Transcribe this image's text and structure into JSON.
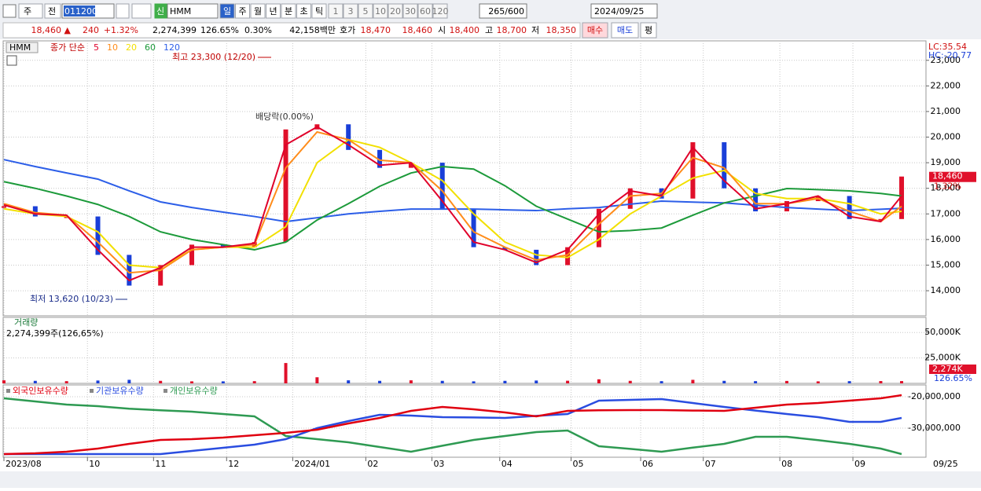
{
  "toolbar": {
    "items": [
      "주",
      "전"
    ],
    "code": "011200",
    "badge": "신",
    "name": "HMM",
    "periods": [
      "일",
      "주",
      "월",
      "년",
      "분",
      "초",
      "틱"
    ],
    "intervals": [
      "1",
      "3",
      "5",
      "10",
      "20",
      "30",
      "60",
      "120"
    ],
    "count": "265/600",
    "date": "2024/09/25"
  },
  "quote": {
    "fields": [
      "18,460 ▲",
      "240",
      "+1.32%",
      "2,274,399",
      "126.65%",
      "0.30%",
      "42,158백만",
      "호가",
      "18,470",
      "18,460",
      "시",
      "18,400",
      "고",
      "18,700",
      "저",
      "18,350"
    ],
    "buttons": [
      "매수",
      "매도",
      "평"
    ]
  },
  "chart_data": [
    {
      "type": "candlestick",
      "title": "HMM",
      "label": "종가 단순",
      "x": [
        0,
        9,
        18,
        27,
        36,
        45,
        54,
        63,
        72,
        81,
        90,
        99,
        108,
        117,
        126,
        135,
        144,
        153,
        162,
        171,
        180,
        189,
        198,
        207,
        216,
        225,
        234,
        243,
        252,
        258
      ],
      "xlim": [
        0,
        265
      ],
      "values": [
        17300,
        16900,
        16900,
        15400,
        14200,
        15000,
        15800,
        15700,
        15900,
        20300,
        20500,
        19500,
        18800,
        19000,
        17200,
        15700,
        15600,
        15000,
        15700,
        17200,
        18000,
        17600,
        19800,
        18000,
        17100,
        17500,
        17700,
        16800,
        16800,
        18460
      ],
      "series": [
        {
          "name": "5",
          "color": "#e0002a",
          "values": [
            17350,
            17000,
            16950,
            15600,
            14400,
            14900,
            15700,
            15700,
            15850,
            19700,
            20400,
            19700,
            18900,
            19000,
            17500,
            15900,
            15600,
            15100,
            15600,
            17000,
            17900,
            17700,
            19600,
            18300,
            17200,
            17400,
            17700,
            16900,
            16700,
            17700
          ]
        },
        {
          "name": "10",
          "color": "#ff8c1a",
          "values": [
            17400,
            17050,
            16950,
            15900,
            14700,
            14800,
            15600,
            15700,
            15800,
            18800,
            20200,
            19900,
            19100,
            19000,
            17900,
            16300,
            15700,
            15200,
            15400,
            16600,
            17700,
            17800,
            19200,
            18800,
            17400,
            17400,
            17600,
            17100,
            16700,
            17300
          ]
        },
        {
          "name": "20",
          "color": "#f2e000",
          "values": [
            17200,
            17000,
            16900,
            16300,
            15000,
            14900,
            15600,
            15700,
            15700,
            16500,
            19000,
            19900,
            19600,
            19000,
            18300,
            17000,
            15900,
            15400,
            15300,
            16000,
            17000,
            17700,
            18400,
            18700,
            17800,
            17600,
            17600,
            17400,
            17000,
            17100
          ]
        },
        {
          "name": "60",
          "color": "#1c9a3a",
          "values": [
            18260,
            18000,
            17700,
            17370,
            16900,
            16300,
            16000,
            15800,
            15600,
            15900,
            16760,
            17400,
            18080,
            18600,
            18850,
            18750,
            18100,
            17300,
            16800,
            16300,
            16350,
            16450,
            16950,
            17430,
            17700,
            17990,
            17950,
            17900,
            17800,
            17700
          ]
        },
        {
          "name": "120",
          "color": "#2c5ee8",
          "values": [
            19120,
            18850,
            18600,
            18360,
            17900,
            17470,
            17250,
            17070,
            16900,
            16700,
            16850,
            17000,
            17100,
            17190,
            17190,
            17190,
            17160,
            17130,
            17200,
            17250,
            17380,
            17500,
            17460,
            17430,
            17340,
            17250,
            17190,
            17130,
            17180,
            17220
          ]
        }
      ],
      "up_color": "#e0102a",
      "down_color": "#1a3fd8",
      "ylim": [
        13020,
        23760
      ],
      "yticks": [
        {
          "value": 14000,
          "label": "14,000"
        },
        {
          "value": 15000,
          "label": "15,000"
        },
        {
          "value": 16000,
          "label": "16,000"
        },
        {
          "value": 17000,
          "label": "17,000"
        },
        {
          "value": 18000,
          "label": "18,000"
        },
        {
          "value": 19000,
          "label": "19,000"
        },
        {
          "value": 20000,
          "label": "20,000"
        },
        {
          "value": 21000,
          "label": "21,000"
        },
        {
          "value": 22000,
          "label": "22,000"
        },
        {
          "value": 23000,
          "label": "23,000"
        }
      ],
      "annotations": [
        "최고 23,300 (12/20)",
        "최저 13,620 (10/23)",
        "배당락(0.00%)"
      ],
      "corner_labels": [
        "LC:35.54",
        "HC:-20.77"
      ],
      "current_labels": [
        "18,460",
        "1.32%"
      ],
      "grid": true
    },
    {
      "type": "bar",
      "title": "거래량",
      "subtitle": "2,274,399주(126,65%)",
      "x": [
        0,
        9,
        18,
        27,
        36,
        45,
        54,
        63,
        72,
        81,
        90,
        99,
        108,
        117,
        126,
        135,
        144,
        153,
        162,
        171,
        180,
        189,
        198,
        207,
        216,
        225,
        234,
        243,
        252,
        258
      ],
      "xlim": [
        0,
        265
      ],
      "values": [
        3000,
        2500,
        2200,
        2800,
        3500,
        2500,
        2000,
        2000,
        2200,
        20000,
        6000,
        3000,
        2500,
        3000,
        2500,
        2000,
        2500,
        2800,
        2600,
        4000,
        2500,
        2200,
        3500,
        2500,
        2200,
        2400,
        2000,
        2200,
        2300,
        2274
      ],
      "ylim": [
        0,
        64840
      ],
      "yticks": [
        {
          "value": 25000,
          "label": "25,000K"
        },
        {
          "value": 50000,
          "label": "50,000K"
        }
      ],
      "current_labels": [
        "2,274K",
        "126.65%"
      ],
      "grid": true
    },
    {
      "type": "line",
      "x": [
        0,
        9,
        18,
        27,
        36,
        45,
        54,
        63,
        72,
        81,
        90,
        99,
        108,
        117,
        126,
        135,
        144,
        153,
        162,
        171,
        180,
        189,
        198,
        207,
        216,
        225,
        234,
        243,
        252,
        258
      ],
      "xlim": [
        0,
        265
      ],
      "xticks": [
        {
          "value": 0,
          "label": "2023/08"
        },
        {
          "value": 24,
          "label": "10"
        },
        {
          "value": 43,
          "label": "11"
        },
        {
          "value": 64,
          "label": "12"
        },
        {
          "value": 83,
          "label": "2024/01"
        },
        {
          "value": 104,
          "label": "02"
        },
        {
          "value": 123,
          "label": "03"
        },
        {
          "value": 142.5,
          "label": "04"
        },
        {
          "value": 163,
          "label": "05"
        },
        {
          "value": 183,
          "label": "06"
        },
        {
          "value": 201,
          "label": "07"
        },
        {
          "value": 223,
          "label": "08"
        },
        {
          "value": 244,
          "label": "09"
        }
      ],
      "x_end_label": "09/25",
      "series": [
        {
          "name": "외국인보유수량",
          "color": "#e00010",
          "values": [
            -38250000,
            -38000000,
            -37500000,
            -36500000,
            -35000000,
            -33750000,
            -33500000,
            -33000000,
            -32250000,
            -31500000,
            -30500000,
            -28500000,
            -26750000,
            -24500000,
            -23250000,
            -24000000,
            -25000000,
            -26250000,
            -24500000,
            -24300000,
            -24250000,
            -24250000,
            -24400000,
            -24500000,
            -23500000,
            -22500000,
            -22000000,
            -21250000,
            -20500000,
            -19500000
          ]
        },
        {
          "name": "기관보유수량",
          "color": "#2a4de0",
          "values": [
            -38250000,
            -38250000,
            -38250000,
            -38250000,
            -38250000,
            -38250000,
            -37250000,
            -36250000,
            -35250000,
            -33500000,
            -30000000,
            -27750000,
            -25750000,
            -26000000,
            -26500000,
            -26600000,
            -26750000,
            -26100000,
            -25500000,
            -21250000,
            -21000000,
            -20750000,
            -22000000,
            -23250000,
            -24400000,
            -25500000,
            -26500000,
            -28000000,
            -28000000,
            -26750000
          ]
        },
        {
          "name": "개인보유수량",
          "color": "#2e9a52",
          "values": [
            -20500000,
            -21500000,
            -22500000,
            -23000000,
            -23800000,
            -24300000,
            -24750000,
            -25500000,
            -26250000,
            -32500000,
            -33500000,
            -34500000,
            -36000000,
            -37500000,
            -35600000,
            -33750000,
            -32500000,
            -31250000,
            -30750000,
            -35750000,
            -36600000,
            -37500000,
            -36200000,
            -35000000,
            -32750000,
            -32750000,
            -33800000,
            -35000000,
            -36500000,
            -38250000
          ]
        }
      ],
      "ylim": [
        -39250000,
        -16250000
      ],
      "yticks": [
        {
          "value": -30000000,
          "label": "-30,000,000"
        },
        {
          "value": -20000000,
          "label": "-20,000,000"
        }
      ],
      "grid": true
    }
  ]
}
